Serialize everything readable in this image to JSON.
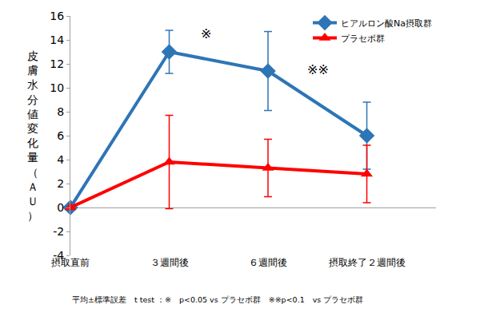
{
  "chart_data": {
    "type": "line",
    "y_label": "皮膚水分値変化量（ＡＵ）",
    "note": "平均±標準誤差　t test ：※　p<0.05 vs プラセボ群　※※p<0.1　vs プラセボ群",
    "categories": [
      "摂取直前",
      "３週間後",
      "６週間後",
      "摂取終了２週間後"
    ],
    "series": [
      {
        "name": "ヒアルロン酸Na摂取群",
        "color": "#2e75b6",
        "marker": "diamond",
        "values": [
          0,
          13,
          11.4,
          6
        ],
        "errors": [
          0,
          1.8,
          3.3,
          2.8
        ]
      },
      {
        "name": "プラセボ群",
        "color": "#ff0000",
        "marker": "triangle-up",
        "values": [
          0,
          3.8,
          3.3,
          2.8
        ],
        "errors": [
          0,
          3.9,
          2.4,
          2.4
        ]
      }
    ],
    "annotations": [
      {
        "text": "※",
        "x": "３週間後",
        "y": 14.5
      },
      {
        "text": "※※",
        "x": "６週間後",
        "y": 11.5
      }
    ],
    "ylim": [
      -4,
      16
    ],
    "yticks": [
      -4,
      -2,
      0,
      2,
      4,
      6,
      8,
      10,
      12,
      14,
      16
    ],
    "grid": false,
    "legend": "top right"
  }
}
